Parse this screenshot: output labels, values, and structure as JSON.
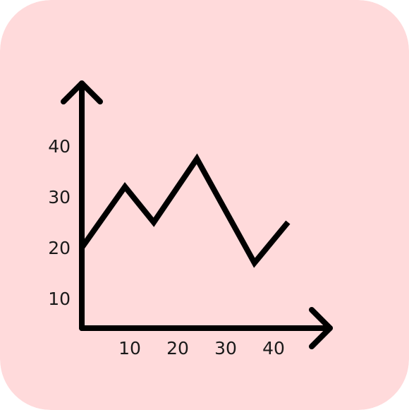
{
  "background_color": "#ffdadb",
  "stroke_color": "#000000",
  "icon": "line-chart-icon",
  "chart_data": {
    "type": "line",
    "title": "",
    "xlabel": "",
    "ylabel": "",
    "x_ticks": [
      "10",
      "20",
      "30",
      "40"
    ],
    "y_ticks": [
      "10",
      "20",
      "30",
      "40"
    ],
    "xlim": [
      0,
      50
    ],
    "ylim": [
      0,
      50
    ],
    "grid": false,
    "series": [
      {
        "x": [
          0,
          9,
          15,
          24,
          36,
          43
        ],
        "y": [
          20,
          32,
          25,
          37.5,
          17,
          25
        ]
      }
    ]
  }
}
